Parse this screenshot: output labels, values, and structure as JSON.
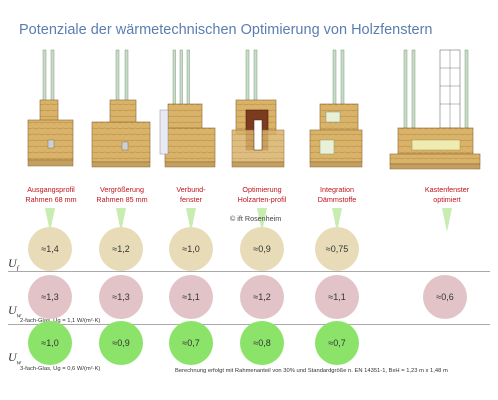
{
  "title": "Potenziale der wärmetechnischen Optimierung von  Holzfenstern",
  "labels": [
    {
      "line1": "Ausgangsprofil",
      "line2": "Rahmen 68 mm"
    },
    {
      "line1": "Vergrößerung",
      "line2": "Rahmen 85 mm"
    },
    {
      "line1": "Verbund-",
      "line2": "fenster"
    },
    {
      "line1": "Optimierung",
      "line2": "Holzarten-profil"
    },
    {
      "line1": "Integration",
      "line2": "Dämmstoffe"
    },
    {
      "line1": "Kastenfenster",
      "line2": "optimiert"
    }
  ],
  "copyright": "© ift Rosenheim",
  "rows": {
    "uf": {
      "label": "U",
      "sub": "f",
      "values": [
        "≈1,4",
        "≈1,2",
        "≈1,0",
        "≈0,9",
        "≈0,75"
      ]
    },
    "uw2": {
      "label": "U",
      "sub": "w",
      "note": "2-fach-Glas, Ug = 1,1 W/(m²·K)",
      "values": [
        "≈1,3",
        "≈1,3",
        "≈1,1",
        "≈1,2",
        "≈1,1",
        "≈0,6"
      ]
    },
    "uw3": {
      "label": "U",
      "sub": "w",
      "note": "3-fach-Glas, Ug = 0,6 W/(m²·K)",
      "values": [
        "≈1,0",
        "≈0,9",
        "≈0,7",
        "≈0,8",
        "≈0,7"
      ]
    }
  },
  "calc_note": "Berechnung  erfolgt mit Rahmenanteil von 30% und Standardgröße n. EN 14351-1, BxH = 1,23 m  x 1,48 m",
  "colors": {
    "title": "#5b7db0",
    "label": "#c0131c",
    "uf_circle": "#e8dcb8",
    "uw2_circle": "#e2c4c8",
    "uw3_circle": "#8be36a",
    "arrow": "#c9ecb0",
    "wood_light": "#d9b36a",
    "wood_dark": "#7a3b1f",
    "glass": "#c8dcc8"
  }
}
